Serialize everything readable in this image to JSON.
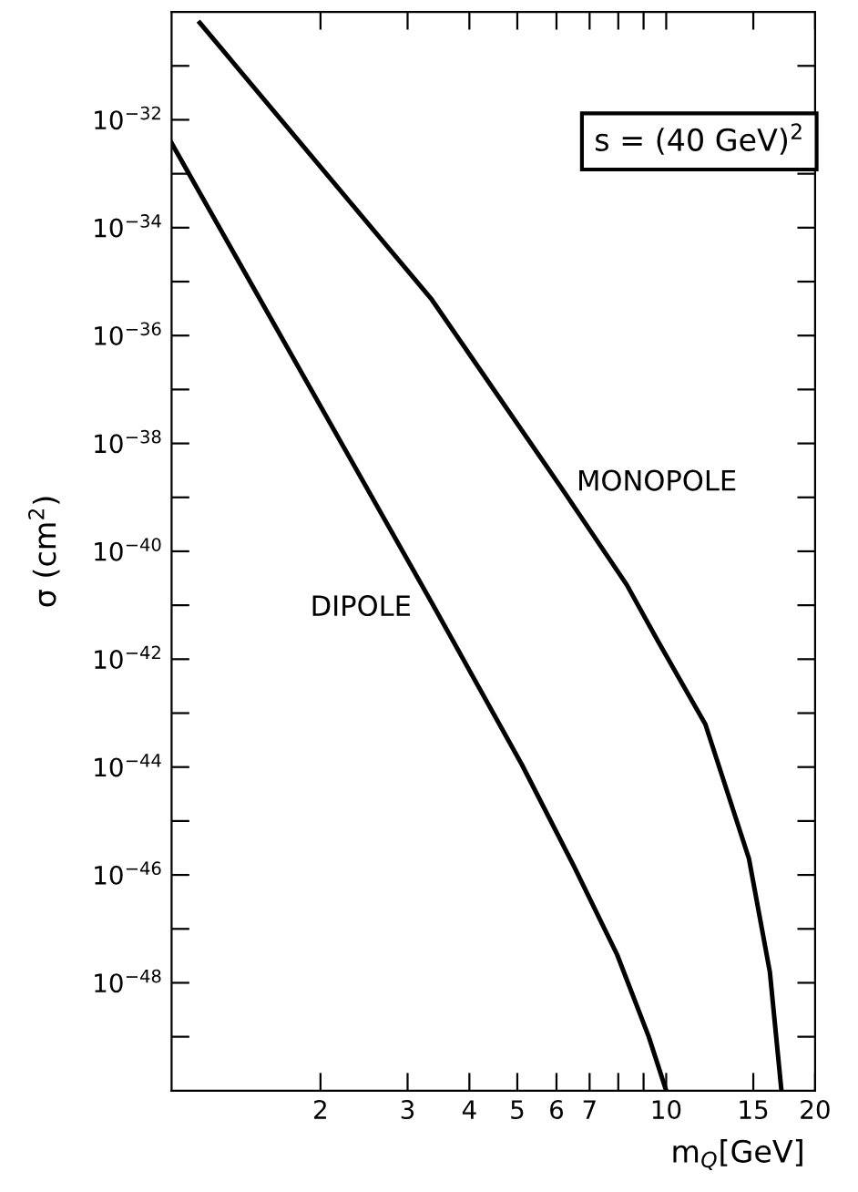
{
  "chart_data": {
    "type": "line",
    "xlabel": "m$_{Q}$[GeV]",
    "ylabel": "σ (cm$^{2}$)",
    "log": "xy",
    "annotations": [
      "s = (40 GeV)$^{2}$"
    ],
    "xlim": [
      1,
      20
    ],
    "ylim": [
      1e-50,
      1e-30
    ],
    "xticks": [
      2,
      3,
      4,
      5,
      6,
      7,
      {
        "value": 8,
        "label": null
      },
      {
        "value": 9,
        "label": null
      },
      10,
      15,
      20
    ],
    "yticks": [
      {
        "value": 1e-49,
        "label": null
      },
      {
        "value": 1e-48,
        "label": "10$^{−48}$"
      },
      {
        "value": 1e-47,
        "label": null
      },
      {
        "value": 1e-46,
        "label": "10$^{−46}$"
      },
      {
        "value": 1e-45,
        "label": null
      },
      {
        "value": 1e-44,
        "label": "10$^{−44}$"
      },
      {
        "value": 1e-43,
        "label": null
      },
      {
        "value": 1e-42,
        "label": "10$^{−42}$"
      },
      {
        "value": 1e-41,
        "label": null
      },
      {
        "value": 1e-40,
        "label": "10$^{−40}$"
      },
      {
        "value": 1e-39,
        "label": null
      },
      {
        "value": 1e-38,
        "label": "10$^{−38}$"
      },
      {
        "value": 1e-37,
        "label": null
      },
      {
        "value": 1e-36,
        "label": "10$^{−36}$"
      },
      {
        "value": 1e-35,
        "label": null
      },
      {
        "value": 1e-34,
        "label": "10$^{−34}$"
      },
      {
        "value": 1e-33,
        "label": null
      },
      {
        "value": 1e-32,
        "label": "10$^{−32}$"
      },
      {
        "value": 1e-31,
        "label": null
      }
    ],
    "grid": false,
    "series": [
      {
        "name": "MONOPOLE",
        "color": "#000000",
        "x": [
          1.14,
          3.36,
          6.14,
          8.32,
          9.64,
          12.0,
          14.7,
          16.2,
          17.1
        ],
        "values": [
          6.3e-31,
          4.6e-36,
          1.5e-39,
          2.4e-41,
          2.1e-42,
          6.2e-44,
          2e-46,
          1.6e-48,
          1e-50
        ]
      },
      {
        "name": "DIPOLE",
        "color": "#000000",
        "x": [
          1.0,
          3.36,
          5.11,
          6.52,
          7.96,
          9.22,
          10.0
        ],
        "values": [
          3.7e-33,
          1.1e-41,
          1.1e-44,
          1.4e-46,
          3.3e-48,
          1e-49,
          1e-50
        ]
      }
    ]
  }
}
